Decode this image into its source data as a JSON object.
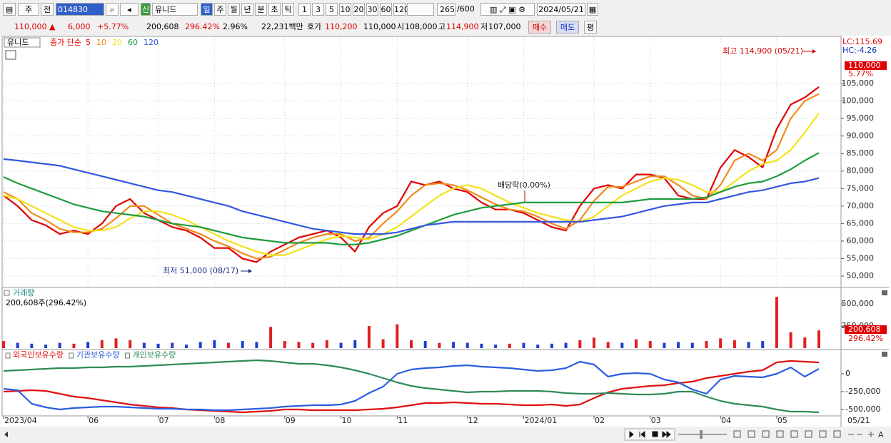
{
  "toolbar": {
    "market": "주",
    "scope": "전",
    "code": "014830",
    "badge": "신",
    "name": "유니드",
    "periods": [
      "일",
      "주",
      "월",
      "년",
      "분",
      "초",
      "틱"
    ],
    "intervals": [
      "1",
      "3",
      "5",
      "10",
      "20",
      "30",
      "60",
      "120"
    ],
    "count": "265",
    "max": "/600",
    "date": "2024/05/21"
  },
  "info_bar": {
    "price": "110,000 ▲",
    "change": "6,000",
    "rate": "+5.77%",
    "volume": "200,608",
    "volume_rate": "296.42%",
    "turnover": "2.96%",
    "amount": "22,231백만",
    "quote_label": "호가",
    "ask": "110,200",
    "bid": "110,000",
    "open_label": "시",
    "open": "108,000",
    "high_label": "고",
    "high": "114,900",
    "low_label": "저",
    "low": "107,000",
    "buy": "매수",
    "sell": "매도",
    "avg": "평"
  },
  "chart_data": [
    {
      "type": "line",
      "stock_name": "유니드",
      "price_type": "종가 단순",
      "lc": "LC:115.69",
      "hc": "HC:-4.26",
      "last_price": "110,000",
      "last_change": "5.77%",
      "annotations": {
        "high": "최고 114,900 (05/21)",
        "low": "최저 51,000 (08/17)",
        "dividend": "배당락(0.00%)"
      },
      "categories": [
        "2023/04",
        null,
        null,
        null,
        null,
        null,
        "06",
        null,
        null,
        null,
        null,
        "07",
        null,
        null,
        null,
        "08",
        null,
        null,
        null,
        null,
        "09",
        null,
        null,
        null,
        "10",
        null,
        null,
        null,
        "11",
        null,
        null,
        null,
        null,
        "12",
        null,
        null,
        null,
        "2024/01",
        null,
        null,
        null,
        null,
        "02",
        null,
        null,
        null,
        "03",
        null,
        null,
        null,
        null,
        "04",
        null,
        null,
        null,
        "05",
        null,
        null,
        null
      ],
      "end_label": "05/21",
      "ylim": [
        46950,
        118240
      ],
      "yticks": [
        {
          "value": 50000,
          "label": "50,000"
        },
        {
          "value": 55000,
          "label": "55,000"
        },
        {
          "value": 60000,
          "label": "60,000"
        },
        {
          "value": 65000,
          "label": "65,000"
        },
        {
          "value": 70000,
          "label": "70,000"
        },
        {
          "value": 75000,
          "label": "75,000"
        },
        {
          "value": 80000,
          "label": "80,000"
        },
        {
          "value": 85000,
          "label": "85,000"
        },
        {
          "value": 90000,
          "label": "90,000"
        },
        {
          "value": 95000,
          "label": "95,000"
        },
        {
          "value": 100000,
          "label": "100,000"
        },
        {
          "value": 105000,
          "label": "105,000"
        }
      ],
      "grid": true,
      "series": [
        {
          "name": "5",
          "color": "#e00000",
          "values": [
            73000,
            70000,
            66000,
            64500,
            62000,
            63000,
            62000,
            65000,
            70000,
            72000,
            68000,
            66000,
            64000,
            63000,
            61000,
            58000,
            58000,
            55000,
            54000,
            57000,
            59000,
            61000,
            62000,
            63000,
            61000,
            57000,
            64000,
            68000,
            70000,
            77000,
            76000,
            77000,
            75000,
            74000,
            71000,
            69000,
            69000,
            68000,
            66000,
            64000,
            63000,
            70000,
            75000,
            76000,
            75000,
            79000,
            79000,
            78000,
            73000,
            72000,
            72000,
            81000,
            86000,
            84000,
            81000,
            92000,
            99000,
            101000,
            104000
          ]
        },
        {
          "name": "10",
          "color": "#f08a1c",
          "values": [
            74000,
            72000,
            68000,
            66000,
            63500,
            62500,
            62500,
            63500,
            66500,
            70000,
            70000,
            67500,
            65000,
            63500,
            62000,
            60000,
            58500,
            56500,
            55000,
            55500,
            57500,
            59500,
            61000,
            62000,
            62000,
            60000,
            61000,
            65000,
            68500,
            73000,
            76000,
            76500,
            76000,
            74500,
            72500,
            70500,
            69000,
            68500,
            67000,
            65000,
            63500,
            66000,
            71500,
            75500,
            75500,
            77000,
            78500,
            78500,
            76000,
            73000,
            72000,
            76000,
            83000,
            85000,
            83000,
            86000,
            95000,
            100000,
            102000
          ]
        },
        {
          "name": "20",
          "color": "#f2e21a",
          "values": [
            73000,
            72000,
            70000,
            68000,
            66000,
            64000,
            63000,
            63000,
            64000,
            66500,
            68500,
            68500,
            67500,
            66000,
            64000,
            62000,
            60000,
            58500,
            57000,
            56000,
            56000,
            57500,
            59000,
            60500,
            61500,
            61000,
            60500,
            62000,
            64000,
            67000,
            70000,
            73000,
            75000,
            76000,
            75000,
            73000,
            71000,
            69500,
            68000,
            67000,
            66000,
            65500,
            67000,
            70000,
            73000,
            75000,
            77000,
            78000,
            77500,
            76000,
            74000,
            74000,
            77000,
            80000,
            82000,
            83000,
            86000,
            91000,
            96500
          ]
        },
        {
          "name": "60",
          "color": "#1f9c3c",
          "values": [
            78300,
            76500,
            75000,
            73500,
            72000,
            70500,
            69500,
            68500,
            68000,
            67500,
            67000,
            66000,
            65000,
            64500,
            64000,
            63000,
            62000,
            61000,
            60500,
            60000,
            59500,
            59500,
            59500,
            59500,
            59000,
            59000,
            59500,
            60500,
            61500,
            63000,
            64500,
            66000,
            67500,
            68500,
            69500,
            70000,
            70500,
            71000,
            71000,
            71000,
            71000,
            71000,
            71000,
            71000,
            71000,
            71500,
            72000,
            72000,
            72000,
            72000,
            72500,
            74000,
            75500,
            76500,
            77000,
            78500,
            80500,
            83000,
            85200
          ]
        },
        {
          "name": "120",
          "color": "#3557e0",
          "values": [
            83400,
            83000,
            82500,
            82000,
            81500,
            80500,
            79500,
            78500,
            77500,
            76500,
            75500,
            74500,
            74000,
            73000,
            72000,
            71000,
            70000,
            68500,
            67500,
            66500,
            65500,
            64500,
            63500,
            63000,
            62500,
            62000,
            62000,
            62000,
            62500,
            63500,
            64500,
            65000,
            65500,
            65500,
            65500,
            65500,
            65500,
            65500,
            65500,
            65500,
            65500,
            65500,
            66000,
            66500,
            67000,
            68000,
            69000,
            70000,
            70500,
            71000,
            71000,
            72000,
            73000,
            74000,
            74500,
            75500,
            76500,
            77000,
            78000
          ]
        }
      ]
    },
    {
      "type": "bar",
      "title": "거래량",
      "summary": "200,608주(296.42%)",
      "last_volume": "200,608",
      "last_ratio": "296.42%",
      "up_color": "#e02020",
      "down_color": "#1f3fd0",
      "ylim": [
        0,
        670000
      ],
      "yticks": [
        {
          "value": 250000,
          "label": "250,000"
        },
        {
          "value": 500000,
          "label": "500,000"
        }
      ],
      "values": [
        80000,
        60000,
        50000,
        40000,
        60000,
        50000,
        70000,
        90000,
        110000,
        90000,
        60000,
        50000,
        60000,
        40000,
        70000,
        90000,
        60000,
        80000,
        70000,
        240000,
        80000,
        70000,
        60000,
        90000,
        60000,
        90000,
        250000,
        100000,
        270000,
        90000,
        80000,
        60000,
        70000,
        60000,
        50000,
        40000,
        50000,
        60000,
        40000,
        50000,
        60000,
        90000,
        120000,
        70000,
        60000,
        100000,
        80000,
        60000,
        70000,
        60000,
        80000,
        110000,
        90000,
        70000,
        80000,
        580000,
        180000,
        120000,
        200608
      ]
    },
    {
      "type": "line",
      "ylim": [
        -580000,
        320000
      ],
      "yticks": [
        0,
        {
          "value": -250000,
          "label": "-250,000"
        },
        {
          "value": -500000,
          "label": "-500,000"
        }
      ],
      "series": [
        {
          "name": "외국인보유수량",
          "color": "#e01010",
          "values": [
            -250000,
            -240000,
            -230000,
            -240000,
            -280000,
            -320000,
            -340000,
            -370000,
            -400000,
            -430000,
            -450000,
            -470000,
            -480000,
            -500000,
            -510000,
            -520000,
            -530000,
            -540000,
            -530000,
            -520000,
            -500000,
            -500000,
            -510000,
            -510000,
            -510000,
            -510000,
            -500000,
            -490000,
            -470000,
            -440000,
            -410000,
            -410000,
            -400000,
            -410000,
            -420000,
            -420000,
            -430000,
            -440000,
            -440000,
            -430000,
            -450000,
            -430000,
            -340000,
            -260000,
            -210000,
            -190000,
            -170000,
            -160000,
            -130000,
            -110000,
            -60000,
            -30000,
            0,
            30000,
            50000,
            160000,
            180000,
            170000,
            160000
          ]
        },
        {
          "name": "기관보유수량",
          "color": "#2a5de0",
          "values": [
            -210000,
            -230000,
            -420000,
            -470000,
            -500000,
            -480000,
            -470000,
            -460000,
            -460000,
            -470000,
            -480000,
            -490000,
            -490000,
            -500000,
            -500000,
            -510000,
            -510000,
            -500000,
            -490000,
            -480000,
            -460000,
            -450000,
            -440000,
            -440000,
            -430000,
            -380000,
            -270000,
            -180000,
            0,
            60000,
            80000,
            90000,
            110000,
            120000,
            100000,
            90000,
            80000,
            60000,
            40000,
            50000,
            80000,
            170000,
            130000,
            -40000,
            0,
            10000,
            0,
            -80000,
            -120000,
            -220000,
            -280000,
            -80000,
            -30000,
            -40000,
            -50000,
            0,
            90000,
            -40000,
            70000
          ]
        },
        {
          "name": "개인보유수량",
          "color": "#2e8b57",
          "values": [
            40000,
            50000,
            60000,
            70000,
            80000,
            80000,
            90000,
            90000,
            100000,
            100000,
            110000,
            120000,
            130000,
            140000,
            150000,
            160000,
            170000,
            180000,
            190000,
            180000,
            160000,
            140000,
            140000,
            120000,
            90000,
            50000,
            0,
            -60000,
            -120000,
            -170000,
            -200000,
            -220000,
            -240000,
            -260000,
            -250000,
            -250000,
            -240000,
            -240000,
            -240000,
            -250000,
            -270000,
            -280000,
            -280000,
            -270000,
            -280000,
            -290000,
            -290000,
            -280000,
            -250000,
            -250000,
            -320000,
            -380000,
            -420000,
            -440000,
            -460000,
            -500000,
            -530000,
            -530000,
            -540000
          ]
        }
      ]
    }
  ],
  "scroll_bar": {
    "font_button": "A"
  }
}
